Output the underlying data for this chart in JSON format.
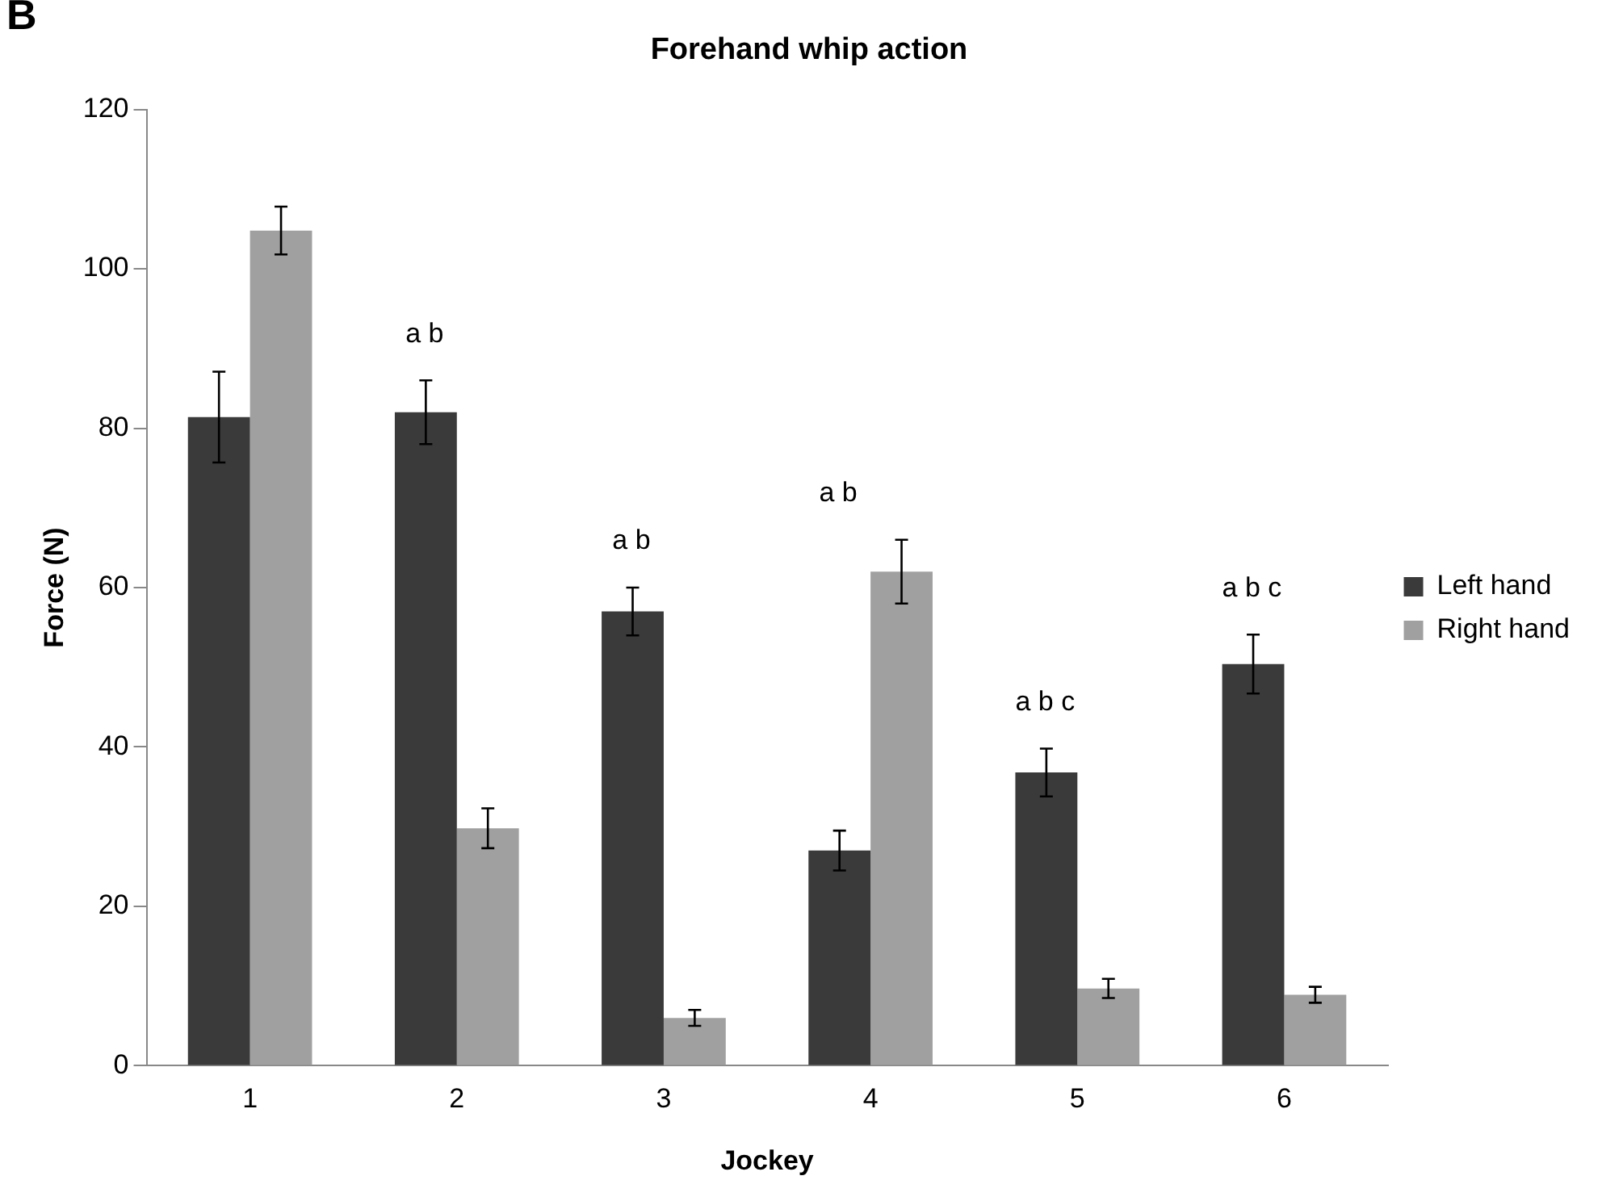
{
  "chart_data": {
    "type": "bar",
    "title": "Forehand whip action",
    "xlabel": "Jockey",
    "ylabel": "Force (N)",
    "categories": [
      "1",
      "2",
      "3",
      "4",
      "5",
      "6"
    ],
    "series": [
      {
        "name": "Left hand",
        "color": "#3a3a3a",
        "values": [
          81.4,
          82,
          57,
          27,
          36.8,
          50.4
        ],
        "errors": [
          5.7,
          4,
          3,
          2.5,
          3,
          3.7
        ]
      },
      {
        "name": "Right hand",
        "color": "#a0a0a0",
        "values": [
          104.8,
          29.8,
          6,
          62,
          9.7,
          8.9
        ],
        "errors": [
          3,
          2.5,
          1,
          4,
          1.2,
          1
        ]
      }
    ],
    "ylim": [
      0,
      120
    ],
    "yticks": [
      0,
      20,
      40,
      60,
      80,
      100,
      120
    ],
    "grid": false,
    "legend": "right",
    "annotations": [
      "B",
      "a b",
      "a b",
      "a b",
      "a b c",
      "a b c"
    ]
  }
}
